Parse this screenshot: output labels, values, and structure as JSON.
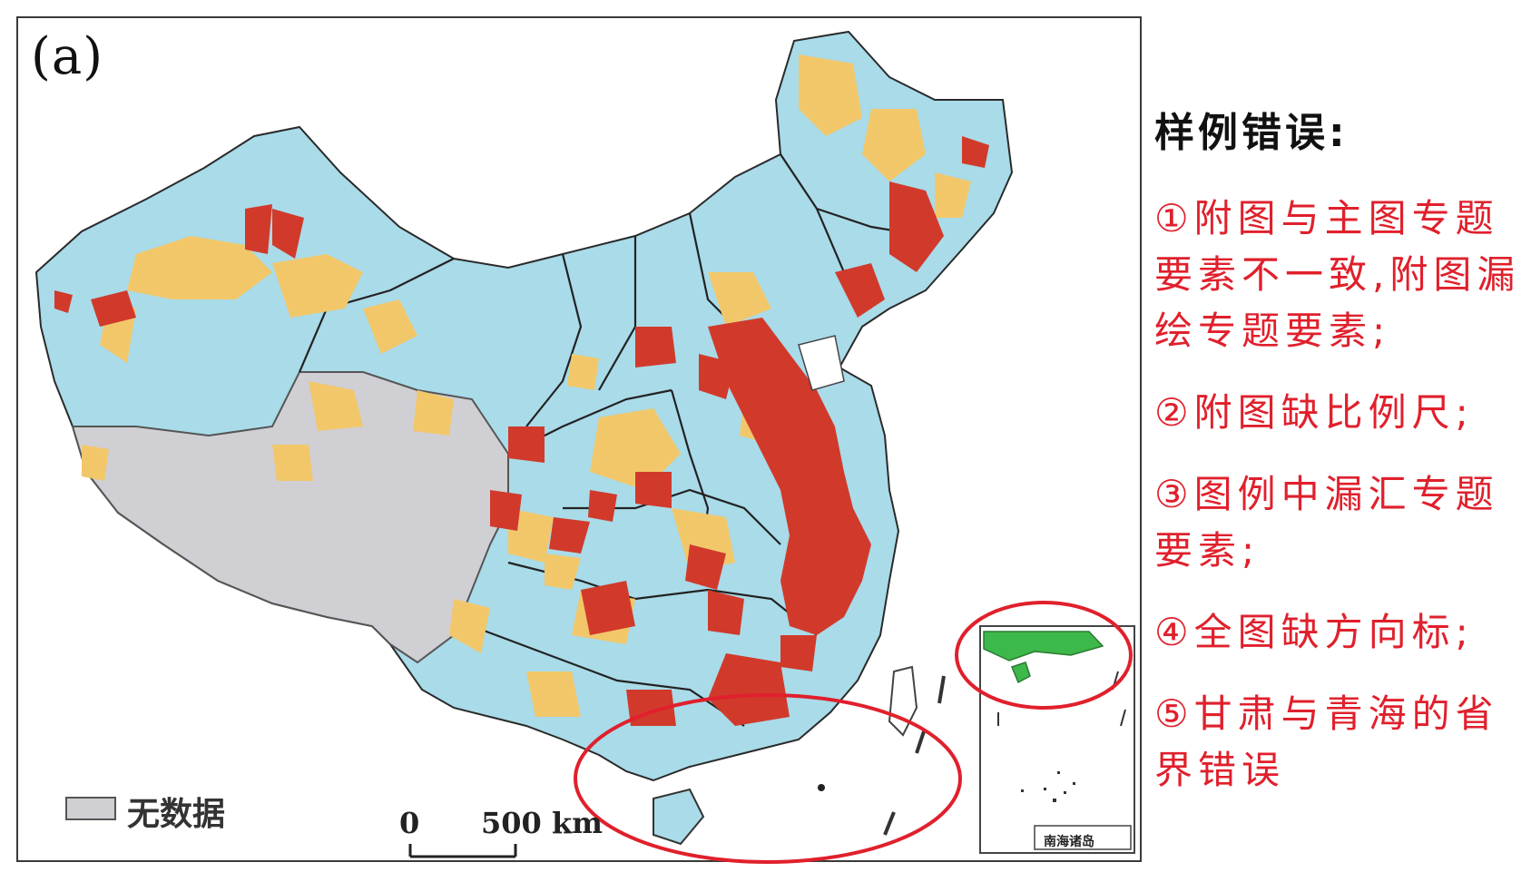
{
  "panel_label": "(a)",
  "map": {
    "legend": {
      "no_data_label": "无数据",
      "no_data_color": "#cfcfd4"
    },
    "scale_bar": {
      "start_label": "0",
      "end_label": "500 km"
    },
    "inset_caption": "南海诸岛",
    "colors": {
      "blue": "#a9dbe9",
      "yellow": "#f2c76a",
      "red": "#d13a2b",
      "gray": "#cfcfd4",
      "inset_land": "#3db84a",
      "highlight_ring": "#e0202c"
    }
  },
  "errors": {
    "title": "样例错误:",
    "items": [
      "①附图与主图专题要素不一致,附图漏绘专题要素;",
      "②附图缺比例尺;",
      "③图例中漏汇专题要素;",
      "④全图缺方向标;",
      "⑤甘肃与青海的省界错误"
    ]
  }
}
